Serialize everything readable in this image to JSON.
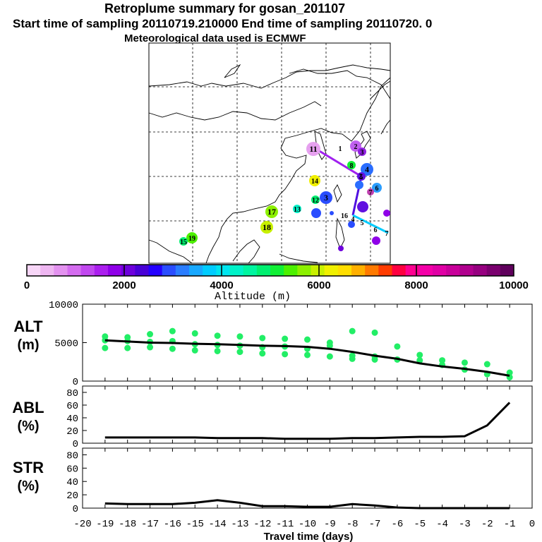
{
  "title": "Retroplume summary for gosan_201107",
  "subtitle": "Start time of sampling 20110719.210000     End time of sampling 20110720.     0",
  "met_note": "Meteorological data used is ECMWF",
  "map": {
    "trajectory_labels": [
      "11",
      "1",
      "2",
      "3",
      "4",
      "5",
      "6",
      "7",
      "8",
      "12",
      "13",
      "14",
      "17",
      "18",
      "19",
      "15",
      "16",
      "2",
      "3",
      "4",
      "5",
      "6",
      "7"
    ]
  },
  "colorbar": {
    "ticks": [
      "0",
      "2000",
      "4000",
      "6000",
      "8000",
      "10000"
    ],
    "label": "Altitude (m)",
    "colors": [
      "#f7d6f7",
      "#eeb6f1",
      "#e392ef",
      "#d46cef",
      "#c148ef",
      "#ab1fee",
      "#8f00e8",
      "#6d00dc",
      "#4800d6",
      "#2400ff",
      "#2a4dff",
      "#2a7dff",
      "#18a8ff",
      "#00ccff",
      "#00e5ef",
      "#00f2c8",
      "#00f5a0",
      "#00ef70",
      "#10ef35",
      "#4cf000",
      "#8cf000",
      "#c8f000",
      "#f0f000",
      "#ffde00",
      "#ffb000",
      "#ff7a00",
      "#ff3c00",
      "#ff0040",
      "#ff0090",
      "#f400a8",
      "#e000a5",
      "#c8009a",
      "#b0008e",
      "#960080",
      "#7a006e",
      "#5f005c"
    ]
  },
  "chart_data": [
    {
      "type": "scatter+line",
      "panel": "ALT",
      "ylabel": "ALT\n(m)",
      "ylim": [
        0,
        10000
      ],
      "y_ticks": [
        "10000",
        "5000",
        "0"
      ],
      "x": [
        -19,
        -18,
        -17,
        -16,
        -15,
        -14,
        -13,
        -12,
        -11,
        -10,
        -9,
        -8,
        -7,
        -6,
        -5,
        -4,
        -3,
        -2,
        -1
      ],
      "mean_line": [
        5300,
        5150,
        5000,
        4950,
        4850,
        4800,
        4700,
        4600,
        4550,
        4450,
        4200,
        3800,
        3300,
        2900,
        2300,
        1900,
        1600,
        1200,
        700
      ],
      "points": [
        [
          -19,
          5800
        ],
        [
          -19,
          5300
        ],
        [
          -19,
          4300
        ],
        [
          -18,
          5700
        ],
        [
          -18,
          5200
        ],
        [
          -18,
          4300
        ],
        [
          -17,
          6100
        ],
        [
          -17,
          5100
        ],
        [
          -17,
          4400
        ],
        [
          -16,
          6500
        ],
        [
          -16,
          5200
        ],
        [
          -16,
          4200
        ],
        [
          -15,
          6200
        ],
        [
          -15,
          4800
        ],
        [
          -15,
          4000
        ],
        [
          -14,
          5900
        ],
        [
          -14,
          4700
        ],
        [
          -14,
          3900
        ],
        [
          -13,
          5800
        ],
        [
          -13,
          4600
        ],
        [
          -13,
          3800
        ],
        [
          -12,
          5600
        ],
        [
          -12,
          4400
        ],
        [
          -12,
          3600
        ],
        [
          -11,
          5500
        ],
        [
          -11,
          4500
        ],
        [
          -11,
          3500
        ],
        [
          -10,
          5400
        ],
        [
          -10,
          4200
        ],
        [
          -10,
          3400
        ],
        [
          -9,
          5000
        ],
        [
          -9,
          4600
        ],
        [
          -9,
          3200
        ],
        [
          -8,
          6500
        ],
        [
          -8,
          3300
        ],
        [
          -8,
          2900
        ],
        [
          -7,
          6300
        ],
        [
          -7,
          3200
        ],
        [
          -7,
          2800
        ],
        [
          -6,
          4500
        ],
        [
          -6,
          2800
        ],
        [
          -5,
          3400
        ],
        [
          -5,
          2700
        ],
        [
          -4,
          2700
        ],
        [
          -4,
          2100
        ],
        [
          -3,
          2400
        ],
        [
          -3,
          1500
        ],
        [
          -2,
          2200
        ],
        [
          -2,
          900
        ],
        [
          -1,
          1100
        ],
        [
          -1,
          500
        ]
      ],
      "point_color": "#22ee66"
    },
    {
      "type": "line",
      "panel": "ABL",
      "ylabel": "ABL\n(%)",
      "ylim": [
        0,
        90
      ],
      "y_ticks": [
        "80",
        "60",
        "40",
        "20",
        "0"
      ],
      "x": [
        -19,
        -18,
        -17,
        -16,
        -15,
        -14,
        -13,
        -12,
        -11,
        -10,
        -9,
        -8,
        -7,
        -6,
        -5,
        -4,
        -3,
        -2,
        -1
      ],
      "values": [
        9,
        9,
        9,
        9,
        9,
        8,
        8,
        8,
        7,
        7,
        7,
        8,
        8,
        9,
        10,
        10,
        11,
        28,
        64
      ]
    },
    {
      "type": "line",
      "panel": "STR",
      "ylabel": "STR\n(%)",
      "ylim": [
        0,
        90
      ],
      "y_ticks": [
        "80",
        "60",
        "40",
        "20",
        "0"
      ],
      "x": [
        -19,
        -18,
        -17,
        -16,
        -15,
        -14,
        -13,
        -12,
        -11,
        -10,
        -9,
        -8,
        -7,
        -6,
        -5,
        -4,
        -3,
        -2,
        -1
      ],
      "values": [
        7,
        6,
        6,
        6,
        8,
        12,
        8,
        3,
        3,
        2,
        2,
        6,
        4,
        1,
        0,
        0,
        0,
        0,
        0
      ]
    }
  ],
  "xaxis": {
    "ticks": [
      "-20",
      "-19",
      "-18",
      "-17",
      "-16",
      "-15",
      "-14",
      "-13",
      "-12",
      "-11",
      "-10",
      "-9",
      "-8",
      "-7",
      "-6",
      "-5",
      "-4",
      "-3",
      "-2",
      "-1",
      "0"
    ],
    "label": "Travel time (days)"
  }
}
